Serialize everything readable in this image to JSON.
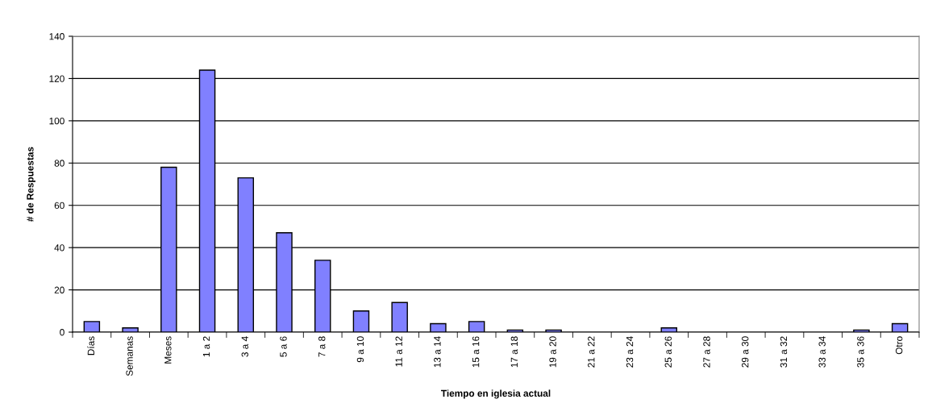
{
  "chart_data": {
    "type": "bar",
    "xlabel": "Tiempo en iglesia actual",
    "ylabel": "# de Respuestas",
    "categories": [
      "Días",
      "Semanas",
      "Meses",
      "1 a 2",
      "3 a 4",
      "5 a 6",
      "7 a 8",
      "9 a 10",
      "11 a 12",
      "13 a 14",
      "15 a 16",
      "17 a 18",
      "19 a 20",
      "21 a 22",
      "23 a 24",
      "25 a 26",
      "27 a 28",
      "29 a 30",
      "31 a 32",
      "33 a 34",
      "35 a 36",
      "Otro"
    ],
    "values": [
      5,
      2,
      78,
      124,
      73,
      47,
      34,
      10,
      14,
      4,
      5,
      1,
      1,
      0,
      0,
      2,
      0,
      0,
      0,
      0,
      1,
      4
    ],
    "color": "#8080ff",
    "ylim": [
      0,
      140
    ],
    "yticks": [
      0,
      20,
      40,
      60,
      80,
      100,
      120,
      140
    ],
    "grid": "y",
    "legend": false
  }
}
